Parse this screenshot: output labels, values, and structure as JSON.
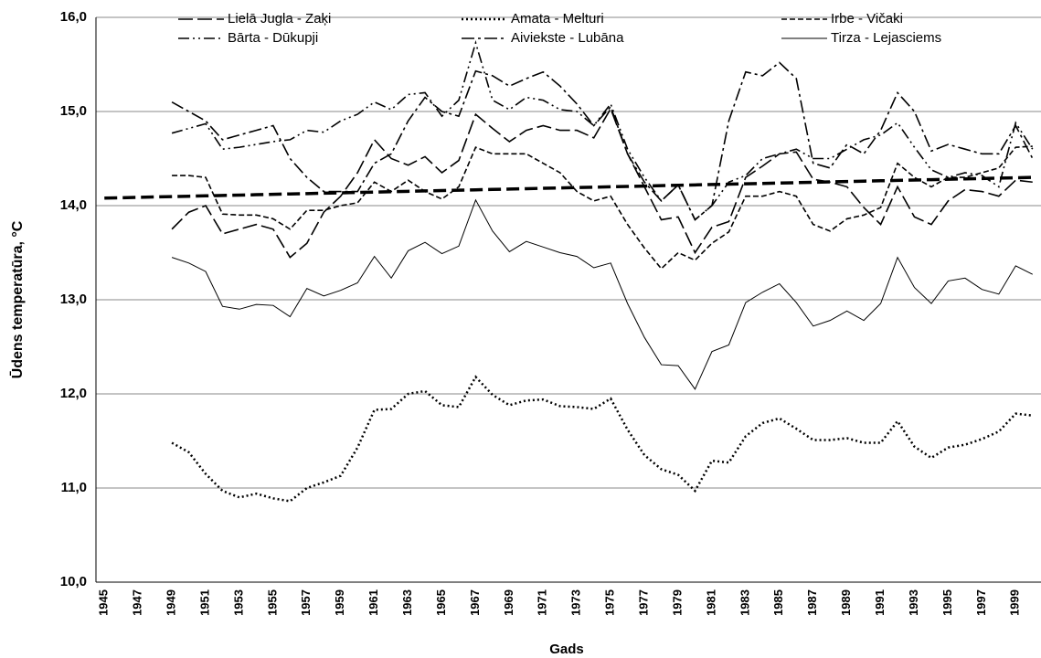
{
  "chart_data": {
    "type": "line",
    "ylabel": "Ūdens temperatūra, °C",
    "xlabel": "Gads",
    "categories": [
      "1945",
      null,
      "1947",
      null,
      "1949",
      null,
      "1951",
      null,
      "1953",
      null,
      "1955",
      null,
      "1957",
      null,
      "1959",
      null,
      "1961",
      null,
      "1963",
      null,
      "1965",
      null,
      "1967",
      null,
      "1969",
      null,
      "1971",
      null,
      "1973",
      null,
      "1975",
      null,
      "1977",
      null,
      "1979",
      null,
      "1981",
      null,
      "1983",
      null,
      "1985",
      null,
      "1987",
      null,
      "1989",
      null,
      "1991",
      null,
      "1993",
      null,
      "1995",
      null,
      "1997",
      null,
      "1999",
      null
    ],
    "ylim": [
      10,
      16
    ],
    "yticks": [
      {
        "value": 10,
        "label": "10,0"
      },
      {
        "value": 11,
        "label": "11,0"
      },
      {
        "value": 12,
        "label": "12,0"
      },
      {
        "value": 13,
        "label": "13,0"
      },
      {
        "value": 14,
        "label": "14,0"
      },
      {
        "value": 15,
        "label": "15,0"
      },
      {
        "value": 16,
        "label": "16,0"
      }
    ],
    "grid": true,
    "legend": "top",
    "series": [
      {
        "name": "Lielā Jugla - Zaķi",
        "color": "#000000",
        "linestyle": "longdash",
        "values": [
          null,
          null,
          null,
          null,
          13.75,
          13.93,
          14.0,
          13.7,
          13.75,
          13.8,
          13.75,
          13.45,
          13.6,
          13.93,
          14.1,
          14.35,
          14.7,
          14.5,
          14.43,
          14.52,
          14.35,
          14.48,
          14.97,
          14.82,
          14.68,
          14.8,
          14.85,
          14.8,
          14.8,
          14.72,
          15.03,
          14.55,
          14.2,
          13.85,
          13.88,
          13.5,
          13.77,
          13.83,
          14.3,
          14.42,
          14.55,
          14.57,
          14.28,
          14.25,
          14.2,
          13.98,
          13.8,
          14.2,
          13.88,
          13.8,
          14.05,
          14.17,
          14.15,
          14.1,
          14.27,
          14.25
        ]
      },
      {
        "name": "Amata - Melturi",
        "color": "#000000",
        "linestyle": "dot",
        "values": [
          null,
          null,
          null,
          null,
          11.48,
          11.38,
          11.15,
          10.97,
          10.9,
          10.94,
          10.89,
          10.86,
          11.0,
          11.06,
          11.13,
          11.43,
          11.83,
          11.84,
          12.0,
          12.03,
          11.88,
          11.86,
          12.18,
          11.99,
          11.88,
          11.93,
          11.94,
          11.87,
          11.86,
          11.84,
          11.95,
          11.62,
          11.35,
          11.2,
          11.14,
          10.97,
          11.29,
          11.27,
          11.55,
          11.69,
          11.74,
          11.63,
          11.51,
          11.51,
          11.53,
          11.48,
          11.48,
          11.71,
          11.44,
          11.32,
          11.43,
          11.46,
          11.52,
          11.6,
          11.79,
          11.77
        ]
      },
      {
        "name": "Irbe - Vičaki",
        "color": "#000000",
        "linestyle": "dash",
        "values": [
          null,
          null,
          null,
          null,
          14.32,
          14.32,
          14.3,
          13.91,
          13.9,
          13.9,
          13.86,
          13.75,
          13.95,
          13.95,
          14.0,
          14.03,
          14.25,
          14.15,
          14.27,
          14.15,
          14.07,
          14.2,
          14.62,
          14.55,
          14.55,
          14.55,
          14.45,
          14.35,
          14.15,
          14.05,
          14.1,
          13.8,
          13.55,
          13.33,
          13.5,
          13.42,
          13.6,
          13.72,
          14.1,
          14.1,
          14.15,
          14.1,
          13.8,
          13.73,
          13.86,
          13.9,
          13.98,
          14.45,
          14.3,
          14.2,
          14.3,
          14.3,
          14.35,
          14.4,
          14.62,
          14.63
        ]
      },
      {
        "name": "Bārta - Dūkupji",
        "color": "#000000",
        "linestyle": "dashdotdot",
        "values": [
          null,
          null,
          null,
          null,
          14.77,
          14.82,
          14.87,
          14.6,
          14.62,
          14.65,
          14.68,
          14.7,
          14.8,
          14.78,
          14.9,
          14.97,
          15.1,
          15.02,
          15.18,
          15.2,
          14.95,
          15.12,
          15.73,
          15.12,
          15.02,
          15.15,
          15.12,
          15.02,
          15.0,
          14.85,
          15.08,
          14.6,
          14.3,
          14.05,
          14.22,
          13.85,
          14.0,
          14.25,
          14.32,
          14.5,
          14.55,
          14.6,
          14.5,
          14.5,
          14.6,
          14.7,
          14.75,
          14.88,
          14.62,
          14.38,
          14.3,
          14.35,
          14.32,
          14.2,
          14.88,
          14.6
        ]
      },
      {
        "name": "Aiviekste - Lubāna",
        "color": "#000000",
        "linestyle": "dashdot",
        "values": [
          null,
          null,
          null,
          null,
          15.1,
          15.0,
          14.9,
          14.7,
          14.75,
          14.8,
          14.85,
          14.5,
          14.3,
          14.15,
          14.15,
          14.15,
          14.45,
          14.55,
          14.9,
          15.15,
          15.0,
          14.95,
          15.43,
          15.38,
          15.27,
          15.35,
          15.42,
          15.27,
          15.08,
          14.85,
          15.05,
          14.55,
          14.25,
          14.05,
          14.22,
          13.85,
          14.0,
          14.9,
          15.42,
          15.38,
          15.52,
          15.35,
          14.45,
          14.4,
          14.65,
          14.55,
          14.8,
          15.2,
          15.0,
          14.58,
          14.65,
          14.6,
          14.55,
          14.55,
          14.85,
          14.5
        ]
      },
      {
        "name": "Tirza - Lejasciems",
        "color": "#000000",
        "linestyle": "solid",
        "values": [
          null,
          null,
          null,
          null,
          13.45,
          13.39,
          13.3,
          12.93,
          12.9,
          12.95,
          12.94,
          12.82,
          13.12,
          13.04,
          13.1,
          13.18,
          13.46,
          13.23,
          13.52,
          13.61,
          13.49,
          13.57,
          14.06,
          13.73,
          13.51,
          13.62,
          13.56,
          13.5,
          13.46,
          13.34,
          13.39,
          12.96,
          12.6,
          12.31,
          12.3,
          12.05,
          12.45,
          12.52,
          12.97,
          13.08,
          13.17,
          12.97,
          12.72,
          12.78,
          12.88,
          12.78,
          12.96,
          13.45,
          13.13,
          12.96,
          13.2,
          13.23,
          13.11,
          13.06,
          13.36,
          13.27
        ]
      },
      {
        "color": "#000000",
        "linestyle": "trend",
        "values": [
          14.08,
          14.084,
          14.088,
          14.092,
          14.096,
          14.1,
          14.104,
          14.108,
          14.112,
          14.116,
          14.12,
          14.124,
          14.128,
          14.132,
          14.136,
          14.14,
          14.144,
          14.148,
          14.152,
          14.156,
          14.16,
          14.164,
          14.168,
          14.172,
          14.176,
          14.18,
          14.184,
          14.188,
          14.192,
          14.196,
          14.2,
          14.204,
          14.208,
          14.212,
          14.216,
          14.22,
          14.224,
          14.228,
          14.232,
          14.236,
          14.24,
          14.244,
          14.248,
          14.252,
          14.256,
          14.26,
          14.264,
          14.268,
          14.272,
          14.276,
          14.28,
          14.284,
          14.288,
          14.292,
          14.296,
          14.3
        ]
      }
    ]
  }
}
